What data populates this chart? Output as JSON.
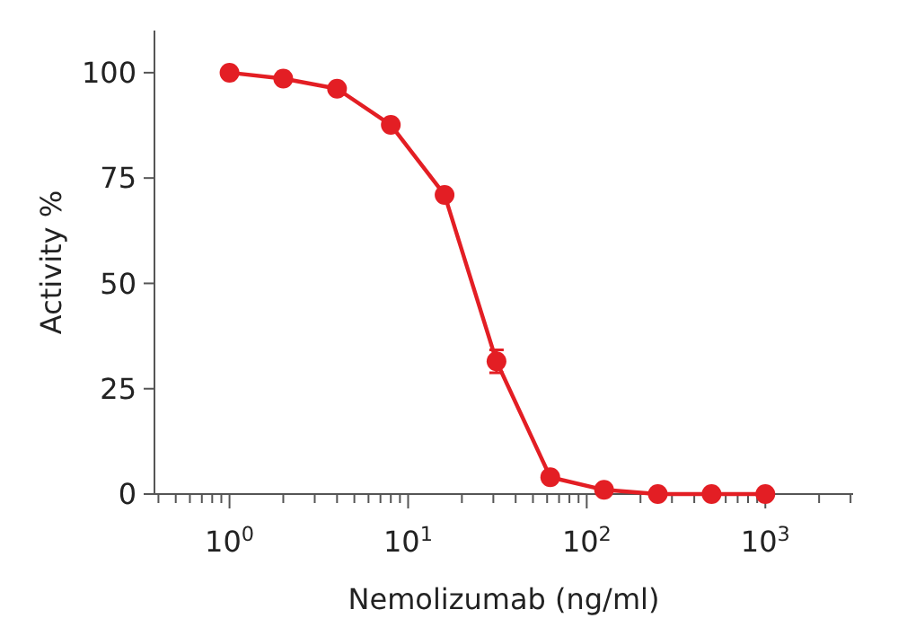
{
  "chart_data": {
    "type": "line",
    "xlabel": "Nemolizumab (ng/ml)",
    "ylabel": "Activity %",
    "x": [
      1,
      2,
      4,
      8,
      16,
      31.25,
      62.5,
      125,
      250,
      500,
      1000
    ],
    "series": [
      {
        "color": "#e31e24",
        "values": [
          100,
          98.6,
          96.2,
          87.6,
          71,
          31.5,
          4,
          1,
          0,
          0,
          0
        ],
        "errors": [
          null,
          null,
          null,
          null,
          null,
          2.7,
          null,
          null,
          null,
          null,
          null
        ]
      }
    ],
    "log": "x",
    "xlim": [
      0.38,
      3100
    ],
    "ylim": [
      0,
      110
    ],
    "xticks": [
      {
        "value": 0.4,
        "label": null
      },
      {
        "value": 0.5,
        "label": null
      },
      {
        "value": 0.6,
        "label": null
      },
      {
        "value": 0.7,
        "label": null
      },
      {
        "value": 0.8,
        "label": null
      },
      {
        "value": 0.9,
        "label": null
      },
      {
        "value": 1,
        "label": "10$^{0}$"
      },
      {
        "value": 2,
        "label": null
      },
      {
        "value": 3,
        "label": null
      },
      {
        "value": 4,
        "label": null
      },
      {
        "value": 5,
        "label": null
      },
      {
        "value": 6,
        "label": null
      },
      {
        "value": 7,
        "label": null
      },
      {
        "value": 8,
        "label": null
      },
      {
        "value": 9,
        "label": null
      },
      {
        "value": 10,
        "label": "10$^{1}$"
      },
      {
        "value": 20,
        "label": null
      },
      {
        "value": 30,
        "label": null
      },
      {
        "value": 40,
        "label": null
      },
      {
        "value": 50,
        "label": null
      },
      {
        "value": 60,
        "label": null
      },
      {
        "value": 70,
        "label": null
      },
      {
        "value": 80,
        "label": null
      },
      {
        "value": 90,
        "label": null
      },
      {
        "value": 100,
        "label": "10$^{2}$"
      },
      {
        "value": 200,
        "label": null
      },
      {
        "value": 300,
        "label": null
      },
      {
        "value": 400,
        "label": null
      },
      {
        "value": 500,
        "label": null
      },
      {
        "value": 600,
        "label": null
      },
      {
        "value": 700,
        "label": null
      },
      {
        "value": 800,
        "label": null
      },
      {
        "value": 900,
        "label": null
      },
      {
        "value": 1000,
        "label": "10$^{3}$"
      },
      {
        "value": 2000,
        "label": null
      },
      {
        "value": 3000,
        "label": null
      }
    ],
    "yticks": [
      0,
      25,
      50,
      75,
      100
    ],
    "marker": "circle",
    "line_style": "solid",
    "grid": false
  }
}
